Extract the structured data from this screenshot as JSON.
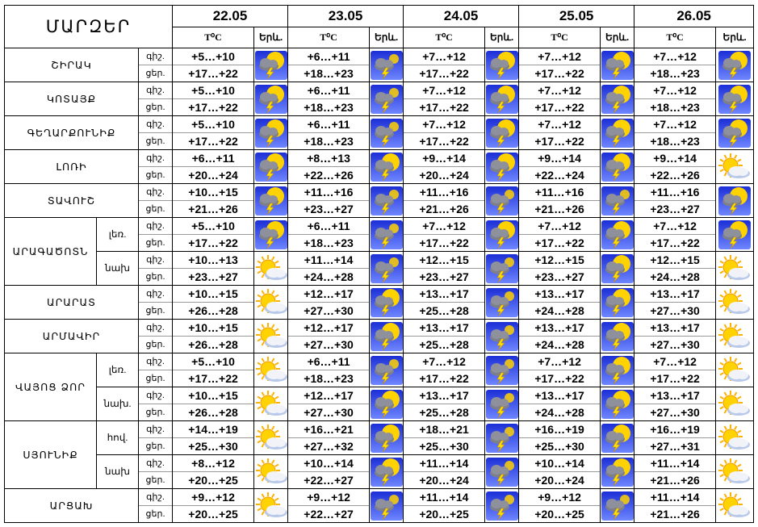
{
  "header": {
    "corner": "ՄԱՐԶԵՐ",
    "dates": [
      "22.05",
      "23.05",
      "24.05",
      "25.05",
      "26.05"
    ],
    "temp_label": "T⁰C",
    "icon_label": "Երև."
  },
  "night_label": "գիշ.",
  "day_label": "ցեր.",
  "rows": [
    {
      "region": "ՇԻՐԱԿ",
      "zone": "",
      "night_label": "գիշ.",
      "day_label": "ցեր.",
      "days": [
        {
          "night": "+5…+10",
          "day": "+17…+22",
          "icon": "sun-cloud-storm-icon"
        },
        {
          "night": "+6…+11",
          "day": "+18…+23",
          "icon": "cloud-storm-icon"
        },
        {
          "night": "+7…+12",
          "day": "+17…+22",
          "icon": "sun-cloud-storm-icon"
        },
        {
          "night": "+7…+12",
          "day": "+17…+22",
          "icon": "sun-cloud-storm-icon"
        },
        {
          "night": "+7…+12",
          "day": "+18…+23",
          "icon": "sun-cloud-storm-icon"
        }
      ]
    },
    {
      "region": "ԿՈՏԱՅՔ",
      "zone": "",
      "night_label": "գիշ.",
      "day_label": "ցեր.",
      "days": [
        {
          "night": "+5…+10",
          "day": "+17…+22",
          "icon": "sun-cloud-storm-icon"
        },
        {
          "night": "+6…+11",
          "day": "+18…+23",
          "icon": "cloud-storm-icon"
        },
        {
          "night": "+7…+12",
          "day": "+17…+22",
          "icon": "sun-cloud-storm-icon"
        },
        {
          "night": "+7…+12",
          "day": "+17…+22",
          "icon": "sun-cloud-storm-icon"
        },
        {
          "night": "+7…+12",
          "day": "+18…+23",
          "icon": "sun-cloud-storm-icon"
        }
      ]
    },
    {
      "region": "ԳԵՂԱՐՔՈՒՆԻՔ",
      "zone": "",
      "night_label": "գիշ.",
      "day_label": "ցեր.",
      "days": [
        {
          "night": "+5…+10",
          "day": "+17…+22",
          "icon": "sun-cloud-storm-icon"
        },
        {
          "night": "+6…+11",
          "day": "+18…+23",
          "icon": "cloud-storm-icon"
        },
        {
          "night": "+7…+12",
          "day": "+17…+22",
          "icon": "sun-cloud-storm-icon"
        },
        {
          "night": "+7…+12",
          "day": "+17…+22",
          "icon": "sun-cloud-storm-icon"
        },
        {
          "night": "+7…+12",
          "day": "+18…+23",
          "icon": "sun-cloud-storm-icon"
        }
      ]
    },
    {
      "region": "ԼՈՌԻ",
      "zone": "",
      "night_label": "գիշ.",
      "day_label": "ցեր.",
      "days": [
        {
          "night": "+6…+11",
          "day": "+20…+24",
          "icon": "sun-cloud-storm-icon"
        },
        {
          "night": "+8…+13",
          "day": "+22…+26",
          "icon": "sun-cloud-storm-icon"
        },
        {
          "night": "+9…+14",
          "day": "+20…+24",
          "icon": "sun-cloud-storm-icon"
        },
        {
          "night": "+9…+14",
          "day": "+22…+24",
          "icon": "sun-cloud-storm-icon"
        },
        {
          "night": "+9…+14",
          "day": "+22…+26",
          "icon": "sun-cloud-icon"
        }
      ]
    },
    {
      "region": "ՏԱՎՈՒՇ",
      "zone": "",
      "night_label": "գիշ.",
      "day_label": "ցեր.",
      "days": [
        {
          "night": "+10…+15",
          "day": "+21…+26",
          "icon": "sun-cloud-storm-icon"
        },
        {
          "night": "+11…+16",
          "day": "+23…+27",
          "icon": "cloud-storm-icon"
        },
        {
          "night": "+11…+16",
          "day": "+21…+26",
          "icon": "cloud-storm-icon"
        },
        {
          "night": "+11…+16",
          "day": "+21…+26",
          "icon": "cloud-storm-icon"
        },
        {
          "night": "+11…+16",
          "day": "+23…+27",
          "icon": "sun-cloud-storm-icon"
        }
      ]
    },
    {
      "region": "ԱՐԱԳԱԾՈՏՆ",
      "zone": "լեռ.",
      "night_label": "գիշ.",
      "day_label": "ցեր.",
      "days": [
        {
          "night": "+5…+10",
          "day": "+17…+22",
          "icon": "sun-cloud-storm-icon"
        },
        {
          "night": "+6…+11",
          "day": "+18…+23",
          "icon": "cloud-storm-icon"
        },
        {
          "night": "+7…+12",
          "day": "+17…+22",
          "icon": "sun-cloud-storm-icon"
        },
        {
          "night": "+7…+12",
          "day": "+17…+22",
          "icon": "sun-cloud-storm-icon"
        },
        {
          "night": "+7…+12",
          "day": "+17…+22",
          "icon": "sun-cloud-storm-icon"
        }
      ]
    },
    {
      "region": "",
      "zone": "նախ",
      "night_label": "գիշ.",
      "day_label": "ցեր.",
      "days": [
        {
          "night": "+10…+13",
          "day": "+23…+27",
          "icon": "sun-cloud-icon"
        },
        {
          "night": "+11…+14",
          "day": "+24…+28",
          "icon": "cloud-storm-icon"
        },
        {
          "night": "+12…+15",
          "day": "+23…+27",
          "icon": "cloud-storm-icon"
        },
        {
          "night": "+12…+15",
          "day": "+23…+27",
          "icon": "sun-cloud-storm-icon"
        },
        {
          "night": "+12…+15",
          "day": "+24…+28",
          "icon": "sun-cloud-icon"
        }
      ]
    },
    {
      "region": "ԱՐԱՐԱՏ",
      "zone": "",
      "night_label": "գիշ.",
      "day_label": "ցեր.",
      "days": [
        {
          "night": "+10…+15",
          "day": "+26…+28",
          "icon": "sun-cloud-icon"
        },
        {
          "night": "+12…+17",
          "day": "+27…+30",
          "icon": "sun-cloud-storm-icon"
        },
        {
          "night": "+13…+17",
          "day": "+25…+28",
          "icon": "cloud-storm-icon"
        },
        {
          "night": "+13…+17",
          "day": "+24…+28",
          "icon": "sun-cloud-storm-icon"
        },
        {
          "night": "+13…+17",
          "day": "+27…+30",
          "icon": "sun-cloud-icon"
        }
      ]
    },
    {
      "region": "ԱՐՄԱՎԻՐ",
      "zone": "",
      "night_label": "գիշ.",
      "day_label": "ցեր.",
      "days": [
        {
          "night": "+10…+15",
          "day": "+26…+28",
          "icon": "sun-cloud-icon"
        },
        {
          "night": "+12…+17",
          "day": "+27…+30",
          "icon": "sun-cloud-storm-icon"
        },
        {
          "night": "+13…+17",
          "day": "+25…+28",
          "icon": "cloud-storm-icon"
        },
        {
          "night": "+13…+17",
          "day": "+24…+28",
          "icon": "sun-cloud-storm-icon"
        },
        {
          "night": "+13…+17",
          "day": "+27…+30",
          "icon": "sun-cloud-icon"
        }
      ]
    },
    {
      "region": "ՎԱՅՈՑ ՁՈՐ",
      "zone": "լեռ.",
      "night_label": "գիշ.",
      "day_label": "ցեր.",
      "days": [
        {
          "night": "+5…+10",
          "day": "+17…+22",
          "icon": "sun-cloud-icon"
        },
        {
          "night": "+6…+11",
          "day": "+18…+23",
          "icon": "cloud-storm-icon"
        },
        {
          "night": "+7…+12",
          "day": "+17…+22",
          "icon": "cloud-storm-icon"
        },
        {
          "night": "+7…+12",
          "day": "+17…+22",
          "icon": "sun-cloud-storm-icon"
        },
        {
          "night": "+7…+12",
          "day": "+17…+22",
          "icon": "sun-cloud-icon"
        }
      ]
    },
    {
      "region": "",
      "zone": "նախ.",
      "night_label": "գիշ.",
      "day_label": "ցեր.",
      "days": [
        {
          "night": "+10…+15",
          "day": "+26…+28",
          "icon": "sun-cloud-icon"
        },
        {
          "night": "+12…+17",
          "day": "+27…+30",
          "icon": "sun-cloud-storm-icon"
        },
        {
          "night": "+13…+17",
          "day": "+25…+28",
          "icon": "cloud-storm-icon"
        },
        {
          "night": "+13…+17",
          "day": "+24…+28",
          "icon": "sun-cloud-storm-icon"
        },
        {
          "night": "+13…+17",
          "day": "+27…+30",
          "icon": "sun-cloud-icon"
        }
      ]
    },
    {
      "region": "ՍՅՈՒՆԻՔ",
      "zone": "հով.",
      "night_label": "գիշ.",
      "day_label": "ցեր.",
      "days": [
        {
          "night": "+14…+19",
          "day": "+25…+30",
          "icon": "sun-cloud-icon"
        },
        {
          "night": "+16…+21",
          "day": "+27…+32",
          "icon": "sun-cloud-storm-icon"
        },
        {
          "night": "+18…+21",
          "day": "+25…+30",
          "icon": "cloud-storm-icon"
        },
        {
          "night": "+16…+19",
          "day": "+25…+30",
          "icon": "sun-cloud-storm-icon"
        },
        {
          "night": "+16…+19",
          "day": "+27…+31",
          "icon": "sun-cloud-icon"
        }
      ]
    },
    {
      "region": "",
      "zone": "նախ",
      "night_label": "գիշ.",
      "day_label": "ցեր.",
      "days": [
        {
          "night": "+8…+12",
          "day": "+20…+25",
          "icon": "sun-cloud-icon"
        },
        {
          "night": "+10…+14",
          "day": "+22…+27",
          "icon": "sun-cloud-storm-icon"
        },
        {
          "night": "+11…+14",
          "day": "+20…+24",
          "icon": "cloud-storm-icon"
        },
        {
          "night": "+10…+14",
          "day": "+20…+24",
          "icon": "sun-cloud-storm-icon"
        },
        {
          "night": "+11…+14",
          "day": "+21…+26",
          "icon": "sun-cloud-icon"
        }
      ]
    },
    {
      "region": "ԱՐՑԱԽ",
      "zone": "",
      "night_label": "գիշ.",
      "day_label": "ցեր.",
      "days": [
        {
          "night": "+9…+12",
          "day": "+20…+25",
          "icon": "sun-cloud-icon"
        },
        {
          "night": "+9…+12",
          "day": "+22…+27",
          "icon": "cloud-storm-icon"
        },
        {
          "night": "+11…+14",
          "day": "+20…+25",
          "icon": "cloud-storm-icon"
        },
        {
          "night": "+9…+12",
          "day": "+20…+25",
          "icon": "cloud-storm-icon"
        },
        {
          "night": "+11…+14",
          "day": "+21…+26",
          "icon": "sun-cloud-icon"
        }
      ]
    }
  ],
  "colors": {
    "icon_sky_top": "#1c2fd6",
    "icon_sky_bottom": "#6f86ff",
    "sun": "#ffd200",
    "storm_cloud": "#7d7f8a",
    "lightning": "#ffe000",
    "cloud_white": "#f1f3f8",
    "cloud_blue": "#b9c9ea"
  }
}
